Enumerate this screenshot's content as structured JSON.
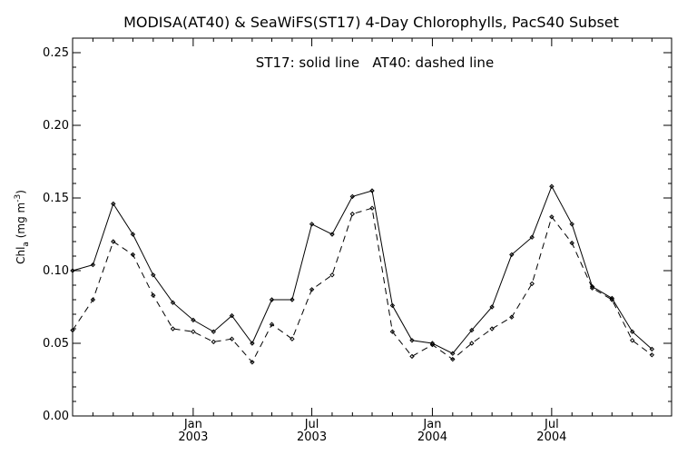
{
  "chart_data": {
    "type": "line",
    "title": "MODISA(AT40) & SeaWiFS(ST17) 4-Day Chlorophylls, PacS40 Subset",
    "annotation": "ST17: solid line   AT40: dashed line",
    "ylabel": {
      "prefix": "Chl",
      "sub": "a",
      "units_prefix": " (mg m",
      "sup": "-3",
      "units_suffix": ")"
    },
    "ylim": [
      0.0,
      0.26
    ],
    "y_ticks": [
      "0.00",
      "0.05",
      "0.10",
      "0.15",
      "0.20",
      "0.25"
    ],
    "x_ticks": [
      {
        "month": "Jan",
        "year": "2003"
      },
      {
        "month": "Jul",
        "year": "2003"
      },
      {
        "month": "Jan",
        "year": "2004"
      },
      {
        "month": "Jul",
        "year": "2004"
      }
    ],
    "x_points": [
      "2002-07-01",
      "2002-08-01",
      "2002-09-01",
      "2002-10-01",
      "2002-11-01",
      "2002-12-01",
      "2003-01-01",
      "2003-02-01",
      "2003-03-01",
      "2003-04-01",
      "2003-05-01",
      "2003-06-01",
      "2003-07-01",
      "2003-08-01",
      "2003-09-01",
      "2003-10-01",
      "2003-11-01",
      "2003-12-01",
      "2004-01-01",
      "2004-02-01",
      "2004-03-01",
      "2004-04-01",
      "2004-05-01",
      "2004-06-01",
      "2004-07-01",
      "2004-08-01",
      "2004-09-01",
      "2004-10-01",
      "2004-11-01",
      "2004-12-01"
    ],
    "series": [
      {
        "name": "ST17",
        "style": "solid",
        "values": [
          0.1,
          0.104,
          0.146,
          0.125,
          0.097,
          0.078,
          0.066,
          0.058,
          0.069,
          0.05,
          0.08,
          0.08,
          0.132,
          0.125,
          0.151,
          0.155,
          0.076,
          0.052,
          0.05,
          0.043,
          0.059,
          0.075,
          0.111,
          0.123,
          0.158,
          0.132,
          0.089,
          0.081,
          0.058,
          0.046
        ]
      },
      {
        "name": "AT40",
        "style": "dashed",
        "values": [
          0.059,
          0.08,
          0.12,
          0.111,
          0.083,
          0.06,
          0.058,
          0.051,
          0.053,
          0.037,
          0.063,
          0.053,
          0.087,
          0.097,
          0.139,
          0.143,
          0.058,
          0.041,
          0.049,
          0.039,
          0.05,
          0.06,
          0.068,
          0.091,
          0.137,
          0.119,
          0.088,
          0.08,
          0.052,
          0.042
        ]
      }
    ],
    "grid": false,
    "colors": {
      "line": "#000000",
      "background": "#ffffff"
    }
  }
}
